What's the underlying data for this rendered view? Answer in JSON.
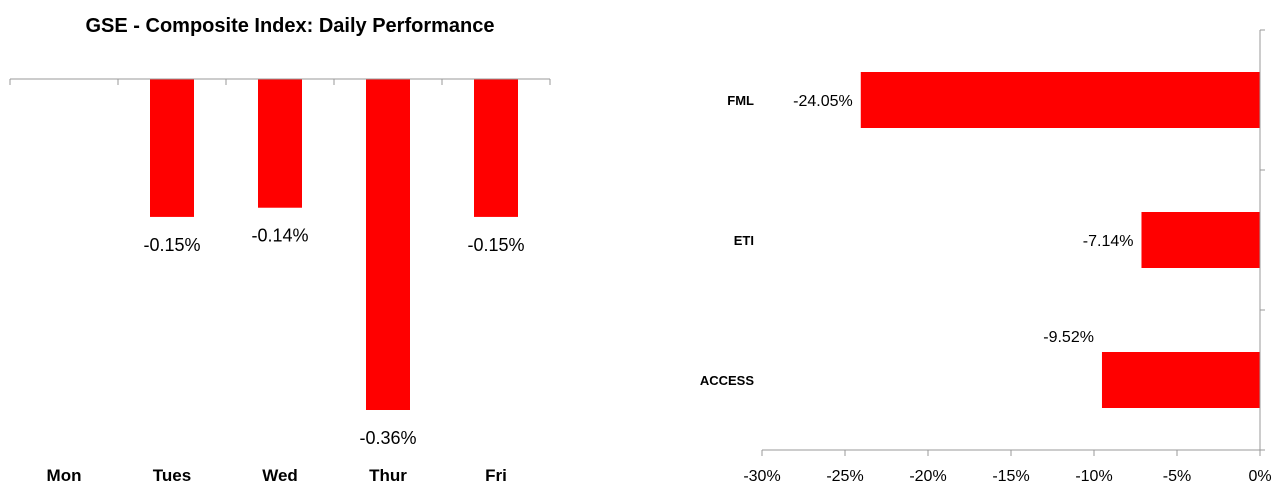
{
  "chart_data": [
    {
      "type": "bar",
      "title": "GSE - Composite Index: Daily Performance",
      "categories": [
        "Mon",
        "Tues",
        "Wed",
        "Thur",
        "Fri"
      ],
      "values": [
        null,
        -0.15,
        -0.14,
        -0.36,
        -0.15
      ],
      "data_labels": [
        "",
        "-0.15%",
        "-0.14%",
        "-0.36%",
        "-0.15%"
      ],
      "ylim": [
        -0.36,
        0
      ],
      "grid": false,
      "color": "#ff0000"
    },
    {
      "type": "bar",
      "orientation": "horizontal",
      "categories": [
        "FML",
        "ETI",
        "ACCESS"
      ],
      "values": [
        -24.05,
        -7.14,
        -9.52
      ],
      "data_labels": [
        "-24.05%",
        "-7.14%",
        "-9.52%"
      ],
      "xlim": [
        -30,
        0
      ],
      "xticks": [
        -30,
        -25,
        -20,
        -15,
        -10,
        -5,
        0
      ],
      "xtick_labels": [
        "-30%",
        "-25%",
        "-20%",
        "-15%",
        "-10%",
        "-5%",
        "0%"
      ],
      "grid": false,
      "color": "#ff0000"
    }
  ]
}
